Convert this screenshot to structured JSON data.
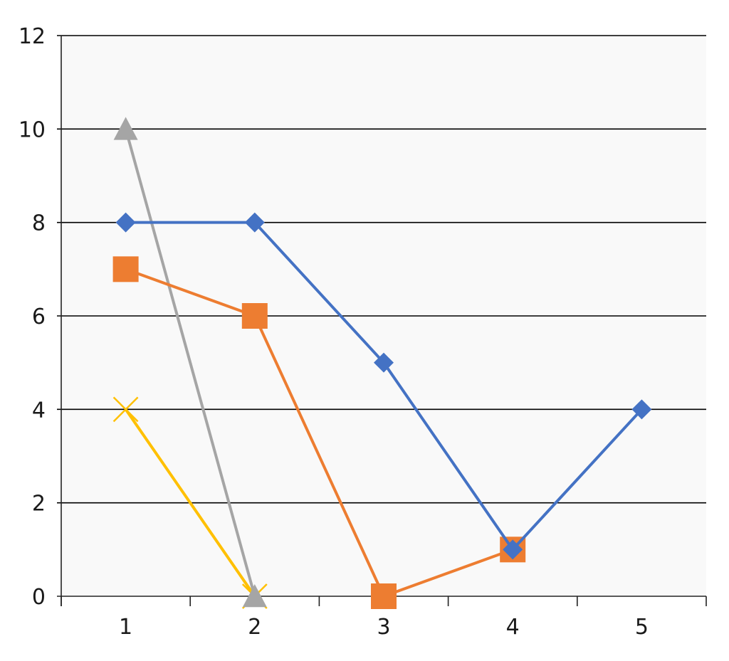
{
  "chart_data": {
    "type": "line",
    "x": [
      1,
      2,
      3,
      4,
      5
    ],
    "x_tick_labels": [
      "1",
      "2",
      "3",
      "4",
      "5"
    ],
    "y_tick_labels": [
      "0",
      "2",
      "4",
      "6",
      "8",
      "10",
      "12"
    ],
    "ylim": [
      0,
      12
    ],
    "grid": true,
    "plot_background": "#f9f9f9",
    "series": [
      {
        "color": "#4472c4",
        "marker": "diamond",
        "points": [
          [
            1,
            8
          ],
          [
            2,
            8
          ],
          [
            3,
            5
          ],
          [
            4,
            1
          ],
          [
            5,
            4
          ]
        ]
      },
      {
        "color": "#ed7d31",
        "marker": "square",
        "points": [
          [
            1,
            7
          ],
          [
            2,
            6
          ],
          [
            3,
            0
          ],
          [
            4,
            1
          ]
        ]
      },
      {
        "color": "#a5a5a5",
        "marker": "triangle",
        "points": [
          [
            1,
            10
          ],
          [
            2,
            0
          ]
        ]
      },
      {
        "color": "#ffc000",
        "marker": "x",
        "points": [
          [
            1,
            4
          ],
          [
            2,
            0
          ]
        ]
      }
    ]
  }
}
